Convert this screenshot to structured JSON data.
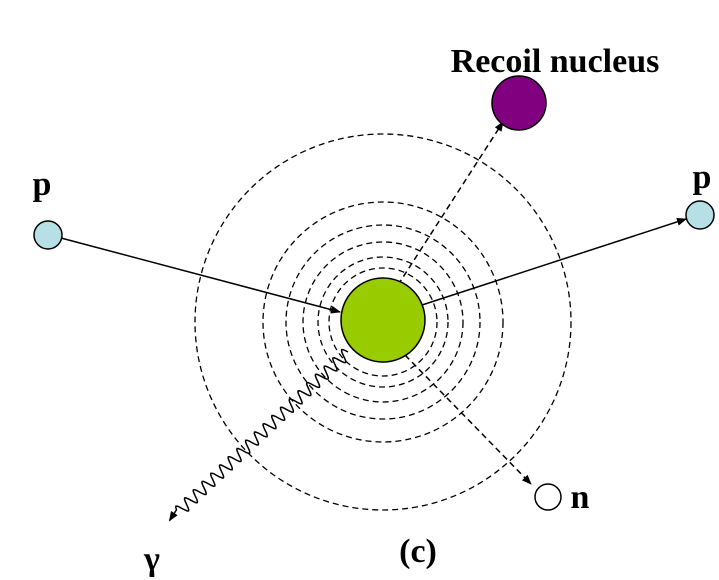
{
  "labels": {
    "recoil": "Recoil nucleus",
    "p_in": "p",
    "p_out": "p",
    "neutron": "n",
    "gamma": "γ",
    "panel": "(c)"
  }
}
